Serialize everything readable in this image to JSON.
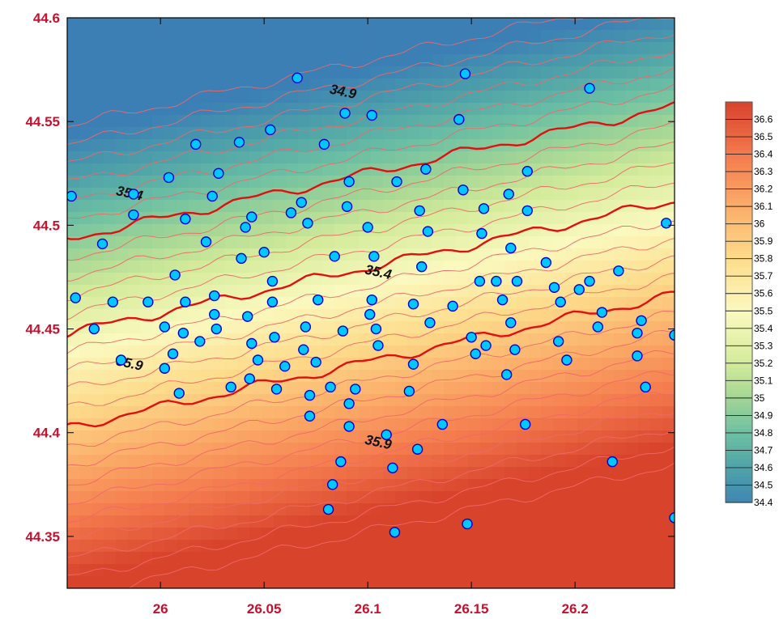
{
  "chart_data": {
    "type": "contour",
    "title": "",
    "xlabel": "",
    "ylabel": "",
    "xlim": [
      25.955,
      26.248
    ],
    "ylim": [
      44.325,
      44.6
    ],
    "x_ticks": [
      "26",
      "26.05",
      "26.1",
      "26.15",
      "26.2"
    ],
    "x_tick_values": [
      26.0,
      26.05,
      26.1,
      26.15,
      26.2
    ],
    "y_ticks": [
      "44.35",
      "44.4",
      "44.45",
      "44.5",
      "44.55",
      "44.6"
    ],
    "y_tick_values": [
      44.35,
      44.4,
      44.45,
      44.5,
      44.55,
      44.6
    ],
    "field": {
      "description_of_model": "linear gradient",
      "value_at_origin": 35.45,
      "origin": [
        26.1,
        44.475
      ],
      "dvalue_dx": 2.4,
      "dvalue_dy": -11.0
    },
    "contour_interval": 0.1,
    "major_contours": [
      34.9,
      35.4,
      35.9
    ],
    "contour_labels": [
      {
        "text": "34.9",
        "x": 26.088,
        "y": 44.564
      },
      {
        "text": "35.4",
        "x": 25.985,
        "y": 44.515
      },
      {
        "text": "35.4",
        "x": 26.105,
        "y": 44.477
      },
      {
        "text": "35.9",
        "x": 25.985,
        "y": 44.433
      },
      {
        "text": "35.9",
        "x": 26.105,
        "y": 44.395
      }
    ],
    "colorbar": {
      "labels": [
        "36.6",
        "36.5",
        "36.4",
        "36.3",
        "36.2",
        "36.1",
        "36",
        "35.9",
        "35.8",
        "35.7",
        "35.6",
        "35.5",
        "35.4",
        "35.3",
        "35.2",
        "35.1",
        "35",
        "34.9",
        "34.8",
        "34.7",
        "34.6",
        "34.5",
        "34.4"
      ],
      "min": 34.4,
      "max": 36.7
    },
    "colormap": [
      [
        34.35,
        "#3b7fb5"
      ],
      [
        34.6,
        "#4fa3a8"
      ],
      [
        34.8,
        "#6dc0a3"
      ],
      [
        35.0,
        "#a2d595"
      ],
      [
        35.2,
        "#d3eb9a"
      ],
      [
        35.5,
        "#fbf9bf"
      ],
      [
        35.8,
        "#fddc8c"
      ],
      [
        36.1,
        "#fbad69"
      ],
      [
        36.4,
        "#f47a4d"
      ],
      [
        36.7,
        "#d8432c"
      ]
    ],
    "colors": {
      "minor_contour": "#f06868",
      "major_contour": "#e01010",
      "point_fill": "#00c8ff",
      "point_stroke": "#0000cc",
      "tick_label": "#c8102e"
    },
    "points": [
      [
        25.957,
        44.514
      ],
      [
        25.959,
        44.465
      ],
      [
        25.968,
        44.45
      ],
      [
        25.972,
        44.491
      ],
      [
        25.977,
        44.463
      ],
      [
        25.981,
        44.435
      ],
      [
        25.987,
        44.515
      ],
      [
        25.987,
        44.505
      ],
      [
        25.994,
        44.463
      ],
      [
        26.002,
        44.451
      ],
      [
        26.002,
        44.431
      ],
      [
        26.004,
        44.523
      ],
      [
        26.006,
        44.438
      ],
      [
        26.007,
        44.476
      ],
      [
        26.009,
        44.419
      ],
      [
        26.011,
        44.448
      ],
      [
        26.012,
        44.463
      ],
      [
        26.012,
        44.503
      ],
      [
        26.017,
        44.539
      ],
      [
        26.019,
        44.444
      ],
      [
        26.022,
        44.492
      ],
      [
        26.025,
        44.514
      ],
      [
        26.026,
        44.457
      ],
      [
        26.026,
        44.466
      ],
      [
        26.027,
        44.45
      ],
      [
        26.028,
        44.525
      ],
      [
        26.034,
        44.422
      ],
      [
        26.038,
        44.54
      ],
      [
        26.039,
        44.484
      ],
      [
        26.041,
        44.499
      ],
      [
        26.042,
        44.456
      ],
      [
        26.043,
        44.426
      ],
      [
        26.044,
        44.504
      ],
      [
        26.044,
        44.443
      ],
      [
        26.047,
        44.435
      ],
      [
        26.05,
        44.487
      ],
      [
        26.053,
        44.546
      ],
      [
        26.054,
        44.473
      ],
      [
        26.054,
        44.463
      ],
      [
        26.055,
        44.446
      ],
      [
        26.056,
        44.421
      ],
      [
        26.06,
        44.432
      ],
      [
        26.063,
        44.506
      ],
      [
        26.066,
        44.571
      ],
      [
        26.068,
        44.511
      ],
      [
        26.069,
        44.44
      ],
      [
        26.07,
        44.451
      ],
      [
        26.071,
        44.501
      ],
      [
        26.072,
        44.418
      ],
      [
        26.072,
        44.408
      ],
      [
        26.075,
        44.434
      ],
      [
        26.076,
        44.464
      ],
      [
        26.079,
        44.539
      ],
      [
        26.081,
        44.363
      ],
      [
        26.082,
        44.422
      ],
      [
        26.083,
        44.375
      ],
      [
        26.084,
        44.485
      ],
      [
        26.087,
        44.386
      ],
      [
        26.088,
        44.449
      ],
      [
        26.089,
        44.554
      ],
      [
        26.09,
        44.509
      ],
      [
        26.091,
        44.521
      ],
      [
        26.091,
        44.414
      ],
      [
        26.091,
        44.403
      ],
      [
        26.094,
        44.421
      ],
      [
        26.1,
        44.499
      ],
      [
        26.101,
        44.457
      ],
      [
        26.102,
        44.464
      ],
      [
        26.102,
        44.553
      ],
      [
        26.103,
        44.485
      ],
      [
        26.104,
        44.45
      ],
      [
        26.105,
        44.442
      ],
      [
        26.109,
        44.399
      ],
      [
        26.112,
        44.383
      ],
      [
        26.113,
        44.352
      ],
      [
        26.114,
        44.521
      ],
      [
        26.12,
        44.42
      ],
      [
        26.122,
        44.433
      ],
      [
        26.122,
        44.462
      ],
      [
        26.124,
        44.392
      ],
      [
        26.125,
        44.507
      ],
      [
        26.126,
        44.48
      ],
      [
        26.128,
        44.527
      ],
      [
        26.129,
        44.497
      ],
      [
        26.13,
        44.453
      ],
      [
        26.136,
        44.404
      ],
      [
        26.141,
        44.461
      ],
      [
        26.144,
        44.551
      ],
      [
        26.146,
        44.517
      ],
      [
        26.147,
        44.573
      ],
      [
        26.148,
        44.356
      ],
      [
        26.15,
        44.446
      ],
      [
        26.152,
        44.438
      ],
      [
        26.154,
        44.473
      ],
      [
        26.155,
        44.496
      ],
      [
        26.156,
        44.508
      ],
      [
        26.157,
        44.442
      ],
      [
        26.162,
        44.473
      ],
      [
        26.165,
        44.464
      ],
      [
        26.167,
        44.428
      ],
      [
        26.168,
        44.515
      ],
      [
        26.169,
        44.489
      ],
      [
        26.169,
        44.453
      ],
      [
        26.171,
        44.44
      ],
      [
        26.172,
        44.473
      ],
      [
        26.176,
        44.404
      ],
      [
        26.177,
        44.507
      ],
      [
        26.177,
        44.526
      ],
      [
        26.186,
        44.482
      ],
      [
        26.19,
        44.47
      ],
      [
        26.192,
        44.444
      ],
      [
        26.193,
        44.463
      ],
      [
        26.196,
        44.435
      ],
      [
        26.202,
        44.469
      ],
      [
        26.207,
        44.473
      ],
      [
        26.207,
        44.566
      ],
      [
        26.211,
        44.451
      ],
      [
        26.213,
        44.458
      ],
      [
        26.218,
        44.386
      ],
      [
        26.221,
        44.478
      ],
      [
        26.23,
        44.448
      ],
      [
        26.23,
        44.437
      ],
      [
        26.232,
        44.454
      ],
      [
        26.234,
        44.422
      ],
      [
        26.244,
        44.501
      ],
      [
        26.248,
        44.447
      ],
      [
        26.248,
        44.359
      ]
    ]
  }
}
